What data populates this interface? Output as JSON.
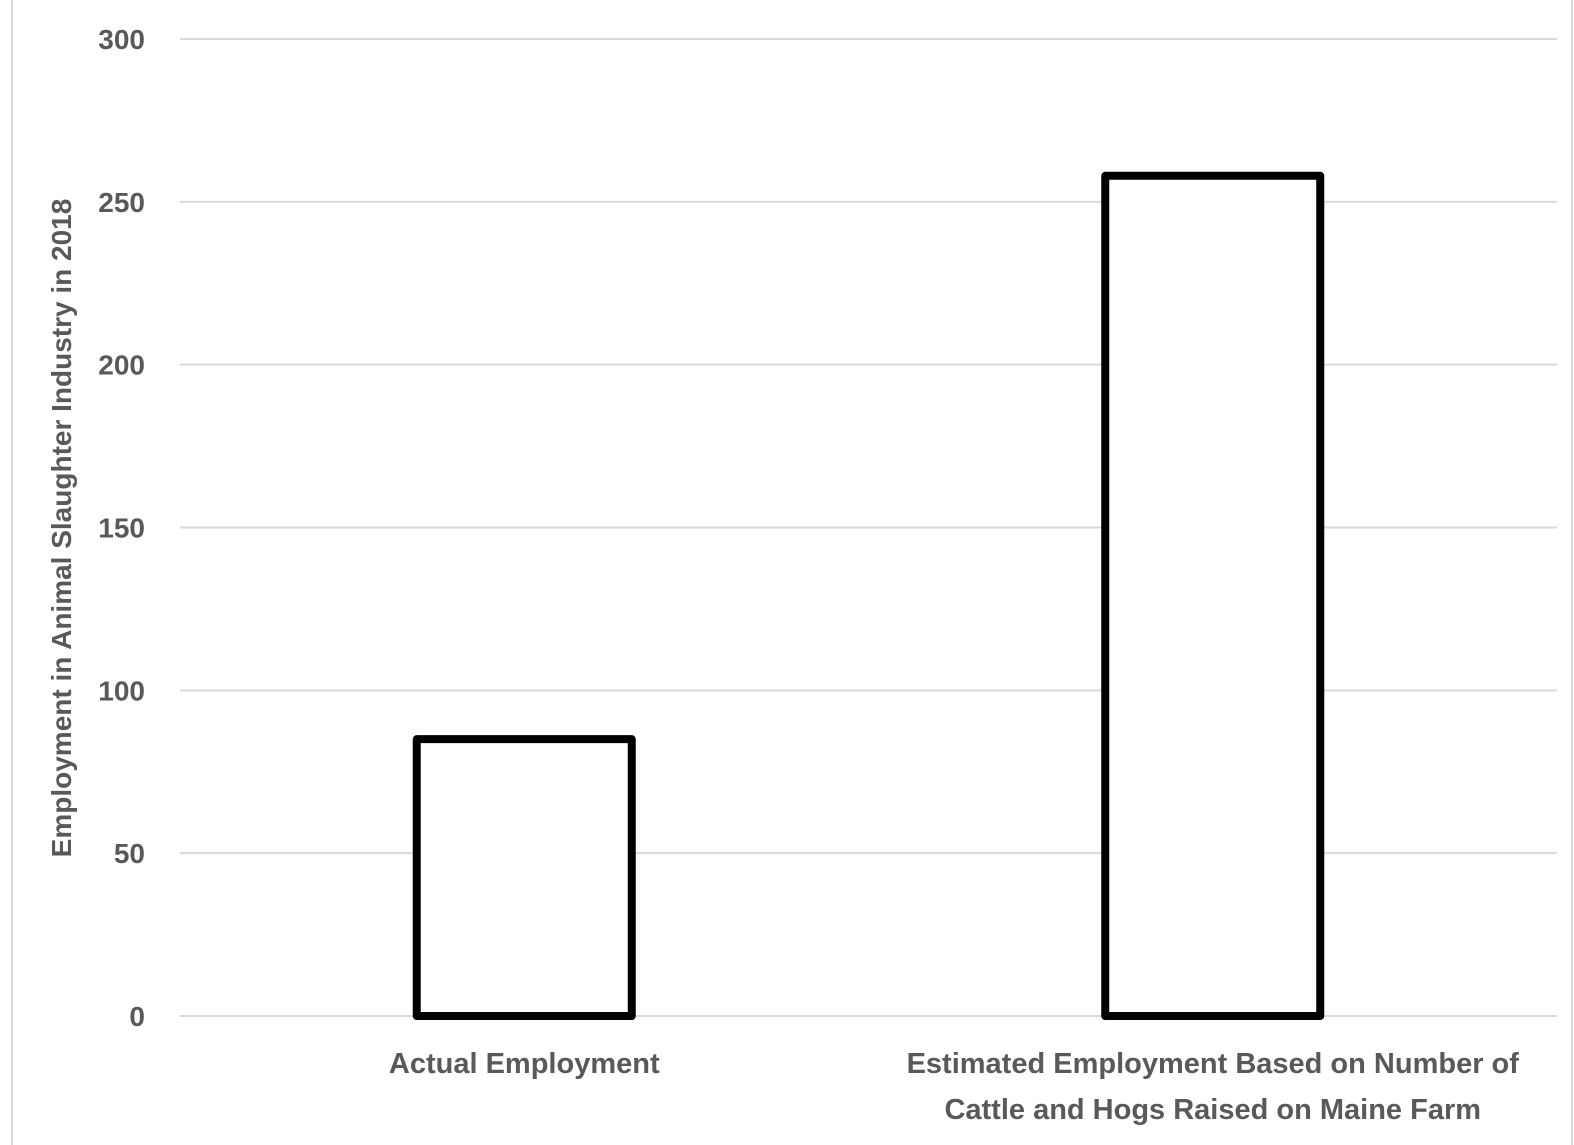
{
  "chart_data": {
    "type": "bar",
    "categories": [
      [
        "Actual Employment"
      ],
      [
        "Estimated Employment Based on Number of",
        "Cattle and Hogs Raised on Maine Farm"
      ]
    ],
    "values": [
      85,
      258
    ],
    "xlabel": "",
    "ylabel": "Employment in Animal Slaughter Industry in 2018",
    "ylim": [
      0,
      300
    ],
    "yticks": [
      0,
      50,
      100,
      150,
      200,
      250,
      300
    ],
    "grid": true,
    "bar_fill": "#ffffff",
    "bar_stroke": "#000000",
    "gridline_color": "#d9d9d9",
    "text_color": "#595959",
    "frame_color": "#d9d9d9"
  }
}
